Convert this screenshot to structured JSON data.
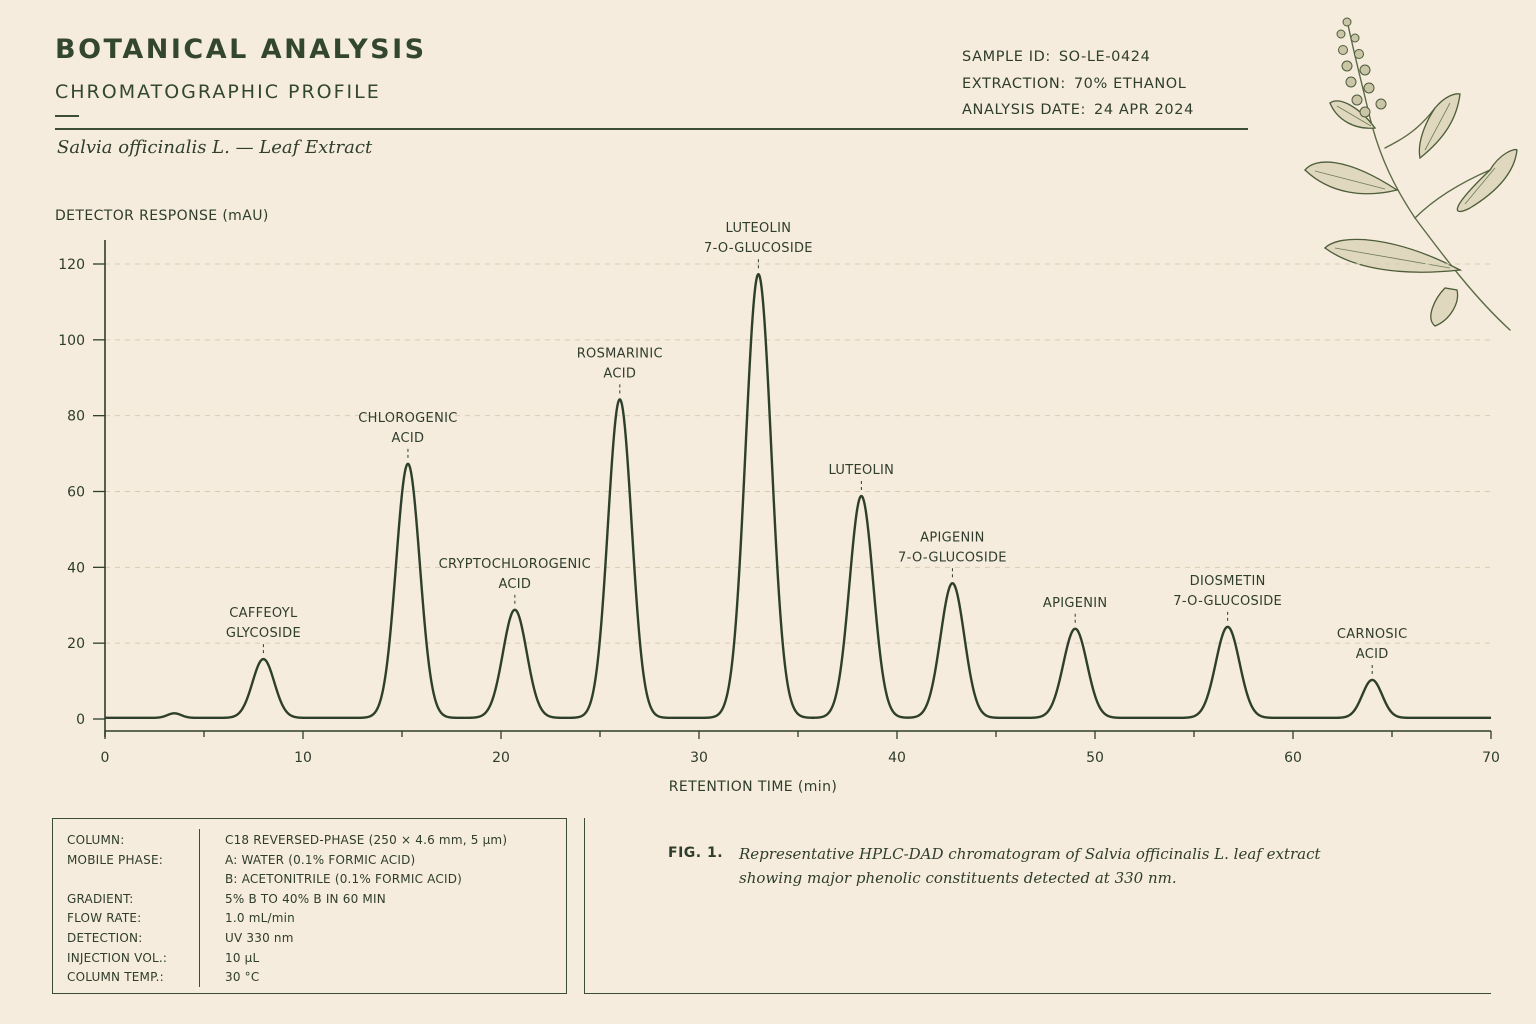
{
  "header": {
    "title": "BOTANICAL ANALYSIS",
    "subtitle": "CHROMATOGRAPHIC PROFILE",
    "species": "Salvia officinalis L. — Leaf Extract"
  },
  "meta": {
    "sample_id_label": "SAMPLE ID:",
    "sample_id": "SO-LE-0424",
    "extraction_label": "EXTRACTION:",
    "extraction": "70% ETHANOL",
    "date_label": "ANALYSIS DATE:",
    "date": "24 APR 2024"
  },
  "illustration": {
    "icon": "sage-sprig-illustration"
  },
  "colors": {
    "background": "#f5ecdd",
    "ink": "#2f3d2c",
    "trace": "#2e3f2b",
    "grid": "#d9cbb3",
    "plant": "#5c6b45"
  },
  "chart_data": {
    "type": "line",
    "ylabel": "DETECTOR RESPONSE (mAU)",
    "xlabel": "RETENTION TIME (min)",
    "xlim": [
      0,
      70
    ],
    "ylim": [
      0,
      120
    ],
    "xticks": [
      0,
      10,
      20,
      30,
      40,
      50,
      60,
      70
    ],
    "yticks": [
      0,
      20,
      40,
      60,
      80,
      100,
      120
    ],
    "grid": "horizontal-dashed",
    "baseline": 0.3,
    "minor_peaks": [
      {
        "rt": 3.5,
        "height": 1.2,
        "width": 0.35
      }
    ],
    "peaks": [
      {
        "label": [
          "CAFFEOYL",
          "GLYCOSIDE"
        ],
        "rt": 8.0,
        "height": 15.5,
        "width": 0.55
      },
      {
        "label": [
          "CHLOROGENIC",
          "ACID"
        ],
        "rt": 15.3,
        "height": 67,
        "width": 0.6
      },
      {
        "label": [
          "CRYPTOCHLOROGENIC",
          "ACID"
        ],
        "rt": 20.7,
        "height": 28.5,
        "width": 0.6
      },
      {
        "label": [
          "ROSMARINIC",
          "ACID"
        ],
        "rt": 26.0,
        "height": 84,
        "width": 0.6
      },
      {
        "label": [
          "LUTEOLIN",
          "7-O-GLUCOSIDE"
        ],
        "rt": 33.0,
        "height": 117,
        "width": 0.65
      },
      {
        "label": [
          "LUTEOLIN"
        ],
        "rt": 38.2,
        "height": 58.5,
        "width": 0.6
      },
      {
        "label": [
          "APIGENIN",
          "7-O-GLUCOSIDE"
        ],
        "rt": 42.8,
        "height": 35.5,
        "width": 0.6
      },
      {
        "label": [
          "APIGENIN"
        ],
        "rt": 49.0,
        "height": 23.5,
        "width": 0.6
      },
      {
        "label": [
          "DIOSMETIN",
          "7-O-GLUCOSIDE"
        ],
        "rt": 56.7,
        "height": 24,
        "width": 0.6
      },
      {
        "label": [
          "CARNOSIC",
          "ACID"
        ],
        "rt": 64.0,
        "height": 10,
        "width": 0.5
      }
    ]
  },
  "conditions": [
    {
      "key": "COLUMN:",
      "value": "C18 REVERSED-PHASE (250 × 4.6 mm, 5 µm)"
    },
    {
      "key": "MOBILE PHASE:",
      "value": "A: WATER (0.1% FORMIC ACID)"
    },
    {
      "key": "",
      "value": "B: ACETONITRILE (0.1% FORMIC ACID)"
    },
    {
      "key": "GRADIENT:",
      "value": "5% B TO 40% B IN 60 MIN"
    },
    {
      "key": "FLOW RATE:",
      "value": "1.0 mL/min"
    },
    {
      "key": "DETECTION:",
      "value": "UV 330 nm"
    },
    {
      "key": "INJECTION VOL.:",
      "value": "10 µL"
    },
    {
      "key": "COLUMN TEMP.:",
      "value": "30 °C"
    }
  ],
  "figure": {
    "label": "FIG. 1.",
    "caption": "Representative HPLC-DAD chromatogram of Salvia officinalis L. leaf extract showing major phenolic constituents detected at 330 nm."
  }
}
